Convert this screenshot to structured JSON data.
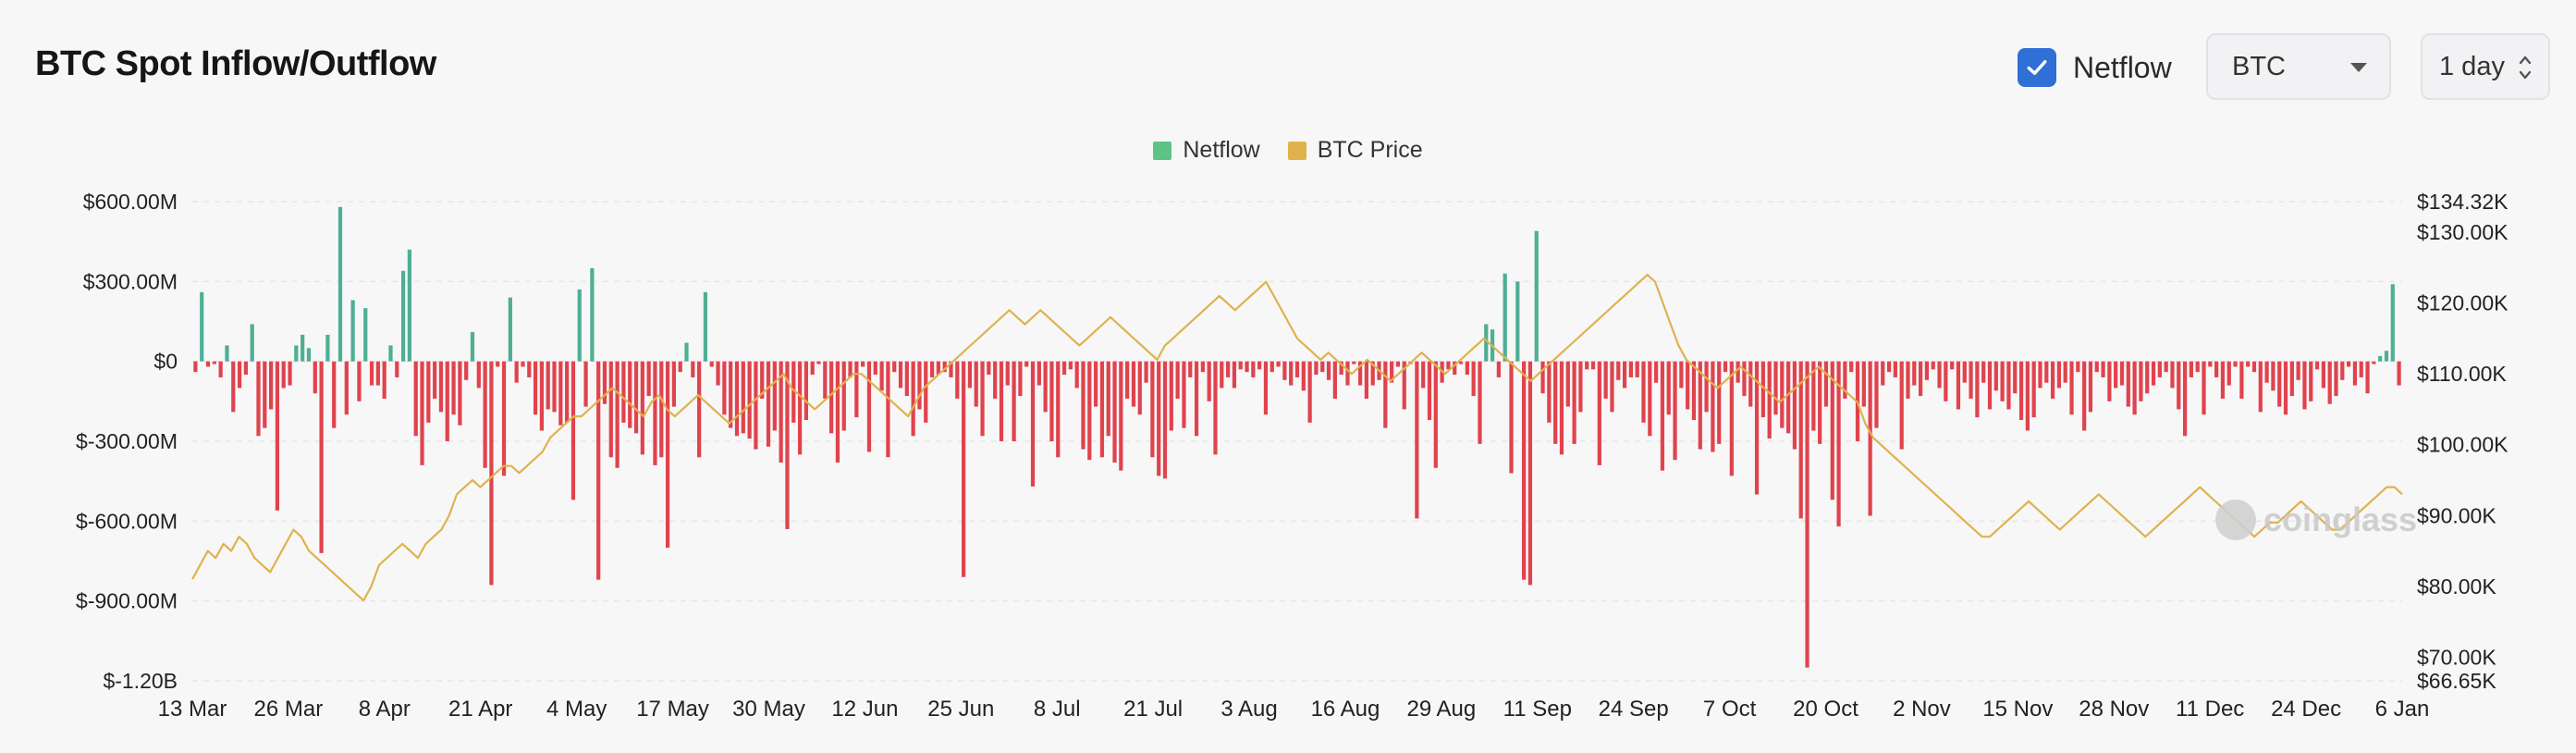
{
  "header": {
    "title": "BTC Spot Inflow/Outflow",
    "netflow_checkbox": {
      "label": "Netflow",
      "checked": true
    },
    "coin_select": {
      "value": "BTC"
    },
    "interval_select": {
      "value": "1 day"
    }
  },
  "watermark": "coinglass",
  "colors": {
    "positive": "#4fae94",
    "negative": "#e0434d",
    "price": "#e0b24e",
    "netflow_legend": "#5cc484",
    "grid": "#e6e6e9"
  },
  "chart_data": {
    "type": "bar",
    "legend": [
      "Netflow",
      "BTC Price"
    ],
    "legend_placement": "top-center",
    "grid": true,
    "x_tick_labels": [
      "13 Mar",
      "26 Mar",
      "8 Apr",
      "21 Apr",
      "4 May",
      "17 May",
      "30 May",
      "12 Jun",
      "25 Jun",
      "8 Jul",
      "21 Jul",
      "3 Aug",
      "16 Aug",
      "29 Aug",
      "11 Sep",
      "24 Sep",
      "7 Oct",
      "20 Oct",
      "2 Nov",
      "15 Nov",
      "28 Nov",
      "11 Dec",
      "24 Dec",
      "6 Jan"
    ],
    "y_left": {
      "tick_labels": [
        "$600.00M",
        "$300.00M",
        "$0",
        "$-300.00M",
        "$-600.00M",
        "$-900.00M",
        "$-1.20B"
      ],
      "tick_values": [
        600,
        300,
        0,
        -300,
        -600,
        -900,
        -1200
      ],
      "range": [
        -1200,
        600
      ],
      "unit": "million USD"
    },
    "y_right": {
      "tick_labels": [
        "$134.32K",
        "$130.00K",
        "$120.00K",
        "$110.00K",
        "$100.00K",
        "$90.00K",
        "$80.00K",
        "$70.00K",
        "$66.65K"
      ],
      "tick_values": [
        134.32,
        130,
        120,
        110,
        100,
        90,
        80,
        70,
        66.65
      ],
      "range": [
        66.65,
        134.32
      ],
      "unit": "thousand USD"
    },
    "series": [
      {
        "name": "Netflow",
        "axis": "left",
        "values": [
          -40,
          260,
          -20,
          -10,
          -60,
          60,
          -190,
          -100,
          -50,
          140,
          -280,
          -250,
          -180,
          -560,
          -100,
          -90,
          60,
          100,
          50,
          -120,
          -720,
          100,
          -250,
          580,
          -200,
          230,
          -150,
          200,
          -90,
          -90,
          -140,
          60,
          -60,
          340,
          420,
          -280,
          -390,
          -230,
          -140,
          -190,
          -300,
          -200,
          -240,
          -70,
          110,
          -100,
          -400,
          -840,
          -20,
          -430,
          240,
          -80,
          -20,
          -60,
          -200,
          -260,
          -180,
          -190,
          -240,
          -230,
          -520,
          270,
          -170,
          350,
          -820,
          -160,
          -360,
          -400,
          -230,
          -250,
          -270,
          -350,
          -130,
          -390,
          -360,
          -700,
          -170,
          -40,
          70,
          -60,
          -360,
          260,
          -20,
          -90,
          -200,
          -250,
          -280,
          -270,
          -290,
          -330,
          -140,
          -320,
          -260,
          -380,
          -630,
          -230,
          -350,
          -220,
          -50,
          -10,
          -140,
          -270,
          -380,
          -260,
          -60,
          -210,
          -20,
          -340,
          -50,
          -110,
          -360,
          -40,
          -100,
          -130,
          -280,
          -180,
          -230,
          -60,
          -50,
          -40,
          -60,
          -140,
          -810,
          -100,
          -170,
          -280,
          -50,
          -140,
          -300,
          -90,
          -300,
          -130,
          -20,
          -470,
          -90,
          -190,
          -300,
          -360,
          -50,
          -30,
          -100,
          -330,
          -370,
          -170,
          -360,
          -280,
          -380,
          -410,
          -140,
          -170,
          -200,
          -80,
          -360,
          -430,
          -440,
          -260,
          -140,
          -250,
          -60,
          -280,
          -40,
          -150,
          -350,
          -100,
          -60,
          -100,
          -30,
          -40,
          -60,
          -30,
          -200,
          -40,
          -20,
          -70,
          -90,
          -60,
          -110,
          -230,
          -50,
          -40,
          -70,
          -140,
          -50,
          -90,
          -10,
          -90,
          -140,
          -90,
          -70,
          -250,
          -80,
          -20,
          -180,
          -10,
          -590,
          -100,
          -220,
          -400,
          -80,
          -30,
          -50,
          -10,
          -50,
          -130,
          -310,
          140,
          120,
          -60,
          330,
          -420,
          300,
          -820,
          -840,
          490,
          -120,
          -230,
          -310,
          -350,
          -170,
          -310,
          -190,
          -30,
          -30,
          -390,
          -140,
          -190,
          -70,
          -100,
          -60,
          -60,
          -230,
          -280,
          -80,
          -410,
          -200,
          -370,
          -100,
          -180,
          -220,
          -330,
          -190,
          -340,
          -310,
          -40,
          -430,
          -80,
          -130,
          -170,
          -500,
          -210,
          -290,
          -200,
          -250,
          -270,
          -330,
          -590,
          -1150,
          -260,
          -310,
          -170,
          -520,
          -620,
          -140,
          -40,
          -300,
          -170,
          -580,
          -250,
          -90,
          -40,
          -60,
          -330,
          -140,
          -90,
          -130,
          -70,
          -30,
          -100,
          -150,
          -30,
          -180,
          -80,
          -140,
          -210,
          -80,
          -180,
          -110,
          -150,
          -180,
          -120,
          -220,
          -260,
          -210,
          -100,
          -80,
          -140,
          -100,
          -80,
          -200,
          -40,
          -260,
          -190,
          -40,
          -60,
          -150,
          -100,
          -90,
          -170,
          -200,
          -150,
          -120,
          -90,
          -60,
          -40,
          -100,
          -180,
          -280,
          -60,
          -40,
          -200,
          -20,
          -60,
          -140,
          -90,
          -20,
          -140,
          -20,
          -40,
          -190,
          -80,
          -110,
          -170,
          -200,
          -130,
          -70,
          -180,
          -150,
          -30,
          -100,
          -160,
          -130,
          -70,
          -20,
          -90,
          -60,
          -120,
          -10,
          20,
          40,
          290,
          -90
        ]
      },
      {
        "name": "BTC Price",
        "axis": "right",
        "values": [
          81,
          83,
          85,
          84,
          86,
          85,
          87,
          86,
          84,
          83,
          82,
          84,
          86,
          88,
          87,
          85,
          84,
          83,
          82,
          81,
          80,
          79,
          78,
          80,
          83,
          84,
          85,
          86,
          85,
          84,
          86,
          87,
          88,
          90,
          93,
          94,
          95,
          94,
          95,
          96,
          97,
          97,
          96,
          97,
          98,
          99,
          101,
          102,
          103,
          104,
          104,
          105,
          106,
          107,
          108,
          107,
          106,
          105,
          104,
          106,
          107,
          105,
          104,
          105,
          106,
          107,
          106,
          105,
          104,
          103,
          104,
          105,
          106,
          107,
          108,
          109,
          110,
          108,
          107,
          106,
          105,
          106,
          107,
          108,
          109,
          110,
          110,
          109,
          108,
          107,
          106,
          105,
          104,
          106,
          108,
          109,
          110,
          111,
          112,
          113,
          114,
          115,
          116,
          117,
          118,
          119,
          118,
          117,
          118,
          119,
          118,
          117,
          116,
          115,
          114,
          115,
          116,
          117,
          118,
          117,
          116,
          115,
          114,
          113,
          112,
          114,
          115,
          116,
          117,
          118,
          119,
          120,
          121,
          120,
          119,
          120,
          121,
          122,
          123,
          121,
          119,
          117,
          115,
          114,
          113,
          112,
          113,
          112,
          111,
          110,
          111,
          112,
          111,
          110,
          109,
          110,
          111,
          112,
          113,
          112,
          111,
          110,
          111,
          112,
          113,
          114,
          115,
          114,
          113,
          112,
          111,
          110,
          109,
          110,
          111,
          112,
          113,
          114,
          115,
          116,
          117,
          118,
          119,
          120,
          121,
          122,
          123,
          124,
          123,
          120,
          117,
          114,
          112,
          111,
          110,
          109,
          108,
          109,
          110,
          111,
          110,
          109,
          108,
          107,
          106,
          107,
          108,
          109,
          110,
          111,
          110,
          109,
          108,
          107,
          106,
          103,
          101,
          100,
          99,
          98,
          97,
          96,
          95,
          94,
          93,
          92,
          91,
          90,
          89,
          88,
          87,
          87,
          88,
          89,
          90,
          91,
          92,
          91,
          90,
          89,
          88,
          89,
          90,
          91,
          92,
          93,
          92,
          91,
          90,
          89,
          88,
          87,
          88,
          89,
          90,
          91,
          92,
          93,
          94,
          93,
          92,
          91,
          90,
          89,
          88,
          87,
          88,
          89,
          89,
          90,
          91,
          92,
          91,
          90,
          89,
          88,
          88,
          89,
          90,
          91,
          92,
          93,
          94,
          94,
          93
        ]
      }
    ]
  }
}
